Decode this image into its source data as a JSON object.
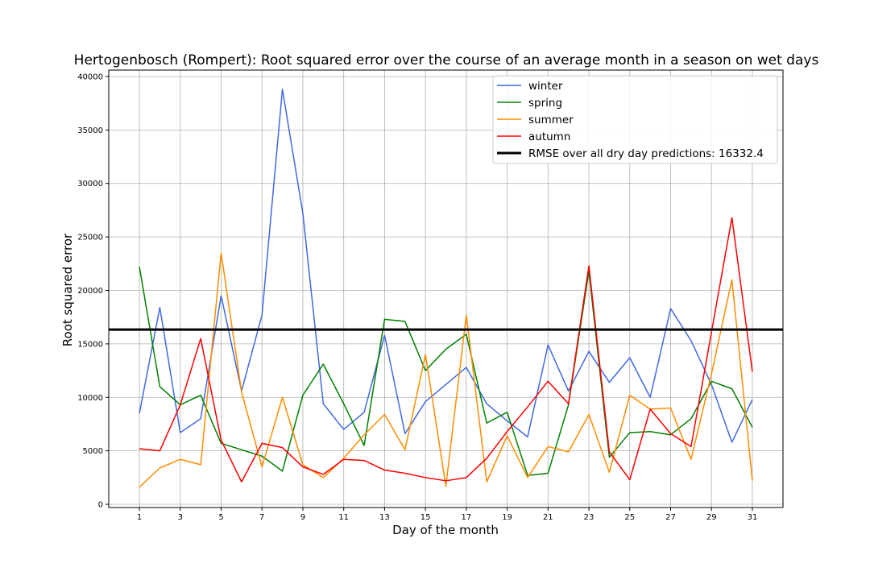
{
  "chart_data": {
    "type": "line",
    "title": "Hertogenbosch (Rompert): Root squared error over the course of an average month in a season on wet days",
    "xlabel": "Day of the month",
    "ylabel": "Root squared error",
    "x": [
      1,
      2,
      3,
      4,
      5,
      6,
      7,
      8,
      9,
      10,
      11,
      12,
      13,
      14,
      15,
      16,
      17,
      18,
      19,
      20,
      21,
      22,
      23,
      24,
      25,
      26,
      27,
      28,
      29,
      30,
      31
    ],
    "xticks": [
      1,
      3,
      5,
      7,
      9,
      11,
      13,
      15,
      17,
      19,
      21,
      23,
      25,
      27,
      29,
      31
    ],
    "xlim": [
      -0.5,
      32.5
    ],
    "yticks": [
      0,
      5000,
      10000,
      15000,
      20000,
      25000,
      30000,
      35000,
      40000
    ],
    "ylim": [
      -300,
      40600
    ],
    "grid": true,
    "legend_position": "top-right",
    "series": [
      {
        "name": "winter",
        "color": "#4169e1",
        "values": [
          8500,
          18400,
          6700,
          8000,
          19500,
          10600,
          17700,
          38800,
          27200,
          9400,
          7000,
          8600,
          15800,
          6600,
          9600,
          11200,
          12800,
          9400,
          7800,
          6300,
          14900,
          10600,
          14300,
          11400,
          13700,
          10000,
          18300,
          15300,
          11200,
          5800,
          9800
        ]
      },
      {
        "name": "spring",
        "color": "#008000",
        "values": [
          22200,
          11000,
          9300,
          10200,
          5700,
          5100,
          4500,
          3100,
          10200,
          13100,
          9400,
          5500,
          17300,
          17100,
          12500,
          14500,
          15900,
          7600,
          8600,
          2700,
          2900,
          9300,
          21800,
          4400,
          6700,
          6800,
          6500,
          8000,
          11500,
          10800,
          7200
        ]
      },
      {
        "name": "summer",
        "color": "#ff8c00",
        "values": [
          1600,
          3400,
          4200,
          3700,
          23500,
          10500,
          3500,
          10000,
          3700,
          2500,
          4300,
          6500,
          8400,
          5100,
          14000,
          1700,
          17700,
          2100,
          6400,
          2500,
          5400,
          4900,
          8400,
          3000,
          10200,
          8900,
          9000,
          4200,
          12200,
          21000,
          2200
        ]
      },
      {
        "name": "autumn",
        "color": "#ff0000",
        "values": [
          5200,
          5000,
          9300,
          15500,
          6000,
          2100,
          5700,
          5300,
          3500,
          2800,
          4200,
          4100,
          3200,
          2900,
          2500,
          2200,
          2500,
          4300,
          6800,
          9100,
          11500,
          9400,
          22300,
          4900,
          2300,
          8900,
          6600,
          5400,
          16100,
          26800,
          12400
        ]
      }
    ],
    "reference_line": {
      "name": "RMSE over all dry day predictions: 16332.4",
      "value": 16332.4,
      "color": "#000000"
    }
  }
}
